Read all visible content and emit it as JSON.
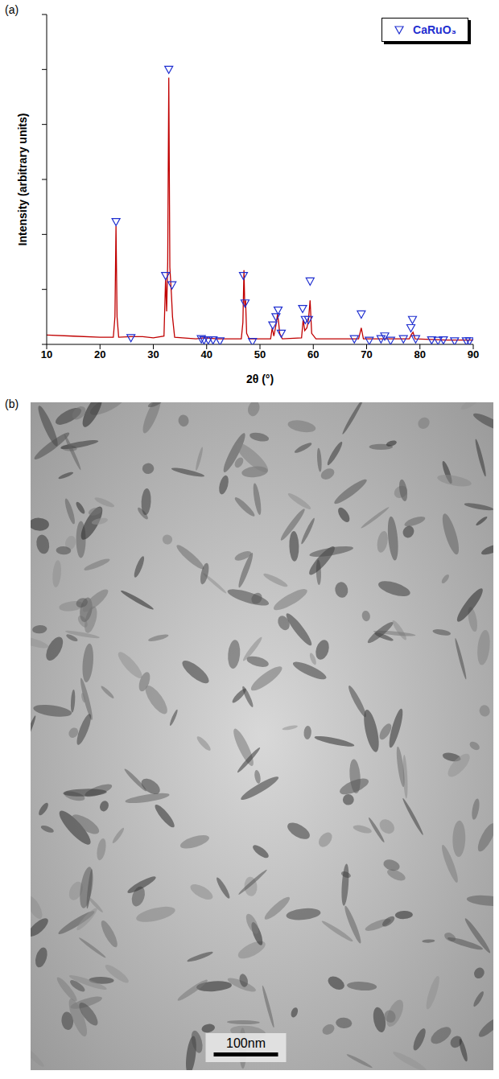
{
  "panel_labels": [
    "(a)",
    "(b)"
  ],
  "chart_data": {
    "type": "line",
    "x_label": "2θ (°)",
    "y_label": "Intensity (arbitrary units)",
    "xlim": [
      10,
      90
    ],
    "xticks": [
      10,
      20,
      30,
      40,
      50,
      60,
      70,
      80,
      90
    ],
    "ylim": [
      0,
      6
    ],
    "yticks": [
      0,
      1,
      2,
      3,
      4,
      5,
      6
    ],
    "tick_labels": "x",
    "grid": false,
    "legend": "top-right",
    "series": [
      {
        "name": null,
        "type": "line",
        "color": "#c00000",
        "x": [
          10,
          15,
          20,
          22.5,
          22.8,
          23.0,
          23.2,
          23.5,
          25.8,
          28,
          30,
          32.0,
          32.3,
          32.5,
          32.7,
          32.9,
          33.1,
          33.4,
          33.6,
          34,
          38,
          39.5,
          42,
          46.5,
          46.8,
          47.0,
          47.15,
          47.3,
          47.5,
          48,
          52,
          52.3,
          52.6,
          53.0,
          53.3,
          53.5,
          53.7,
          54.2,
          57.8,
          58.1,
          58.4,
          58.8,
          59.1,
          59.4,
          59.7,
          60.5,
          68.5,
          69.0,
          69.4,
          78,
          78.4,
          78.7,
          79.1,
          85,
          90
        ],
        "values": [
          0.17,
          0.15,
          0.13,
          0.13,
          0.5,
          2.15,
          0.5,
          0.13,
          0.14,
          0.14,
          0.12,
          0.15,
          1.2,
          0.6,
          1.5,
          4.85,
          1.4,
          0.9,
          0.5,
          0.13,
          0.1,
          0.12,
          0.1,
          0.1,
          0.4,
          1.35,
          0.7,
          0.8,
          0.2,
          0.1,
          0.1,
          0.3,
          0.15,
          0.35,
          0.55,
          0.4,
          0.2,
          0.1,
          0.12,
          0.45,
          0.25,
          0.3,
          0.45,
          0.8,
          0.2,
          0.1,
          0.1,
          0.3,
          0.1,
          0.1,
          0.18,
          0.22,
          0.1,
          0.08,
          0.08
        ]
      },
      {
        "name": "CaRuO₃",
        "type": "scatter",
        "color": "#1f2fd0",
        "marker": "triangle_down",
        "x": [
          23.0,
          25.8,
          32.3,
          32.9,
          33.5,
          39.0,
          39.5,
          40.3,
          41.2,
          42.5,
          46.9,
          47.2,
          48.6,
          52.4,
          53.0,
          53.4,
          54.0,
          58.0,
          58.5,
          59.1,
          59.4,
          67.7,
          69.0,
          70.5,
          72.7,
          73.4,
          74.5,
          76.9,
          78.3,
          78.6,
          79.2,
          82.2,
          83.4,
          84.4,
          86.5,
          88.7,
          89.3
        ],
        "values": [
          2.23,
          0.12,
          1.25,
          5.0,
          1.08,
          0.1,
          0.08,
          0.08,
          0.08,
          0.06,
          1.25,
          0.75,
          0.05,
          0.35,
          0.5,
          0.62,
          0.2,
          0.65,
          0.45,
          0.45,
          1.15,
          0.1,
          0.55,
          0.07,
          0.1,
          0.15,
          0.07,
          0.1,
          0.3,
          0.45,
          0.1,
          0.08,
          0.07,
          0.08,
          0.06,
          0.06,
          0.06
        ]
      }
    ]
  },
  "image": {
    "scale_bar": "100nm"
  }
}
